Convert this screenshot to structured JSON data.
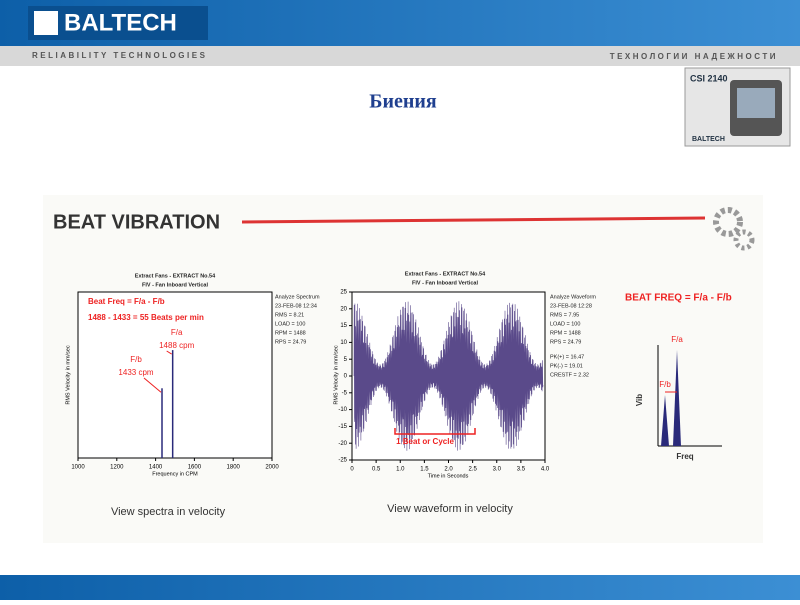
{
  "header": {
    "brand": "BALTECH",
    "tagline_left": "RELIABILITY  TECHNOLOGIES",
    "tagline_right": "ТЕХНОЛОГИИ НАДЕЖНОСТИ",
    "device": "CSI 2140",
    "device_brand": "BALTECH"
  },
  "title": "Биения",
  "slide": {
    "heading": "BEAT VIBRATION",
    "spectrum": {
      "header_lines": [
        "Extract Fans - EXTRACT No.54",
        "FIV - Fan Inboard Vertical"
      ],
      "info": [
        "Analyze Spectrum",
        "23-FEB-08 12:34",
        "RMS = 8.21",
        "LOAD = 100",
        "RPM = 1488",
        "RPS = 24.79"
      ],
      "formula": "Beat Freq = F/a - F/b",
      "calc": "1488 - 1433 = 55 Beats per min",
      "peaks": [
        {
          "name": "F/b",
          "freq": 1433,
          "freq_label": "1433 cpm",
          "amplitude": 4.2
        },
        {
          "name": "F/a",
          "freq": 1488,
          "freq_label": "1488 cpm",
          "amplitude": 6.5
        }
      ],
      "xlim": [
        1000,
        2000
      ],
      "xticks": [
        1000,
        1200,
        1400,
        1600,
        1800,
        2000
      ],
      "ylim": [
        0,
        10
      ],
      "xlabel": "Frequency in CPM",
      "ylabel": "RMS Velocity in mm/sec",
      "caption": "View spectra in velocity"
    },
    "waveform": {
      "header_lines": [
        "Extract Fans - EXTRACT No.54",
        "FIV - Fan Inboard Vertical"
      ],
      "info": [
        "Analyze Waveform",
        "23-FEB-08 12:28",
        "RMS = 7.95",
        "LOAD = 100",
        "RPM = 1488",
        "RPS = 24.79"
      ],
      "peaks_info": [
        "PK(+) = 16.47",
        "PK(-) = 19.01",
        "CRESTF = 2.32"
      ],
      "annotation": "1 Beat or Cycle",
      "xlim": [
        0,
        4
      ],
      "xticks": [
        0,
        0.5,
        {
          "value": 1,
          "label": "1.0"
        },
        1.5,
        {
          "value": 2,
          "label": "2.0"
        },
        2.5,
        {
          "value": 3,
          "label": "3.0"
        },
        3.5,
        {
          "value": 4,
          "label": "4.0"
        }
      ],
      "ylim": [
        -25,
        25
      ],
      "yticks": [
        -25,
        -20,
        -15,
        -10,
        -5,
        0,
        5,
        10,
        15,
        20,
        25
      ],
      "xlabel": "Time in Seconds",
      "ylabel": "RMS Velocity in mm/sec",
      "caption": "View waveform in velocity"
    },
    "schematic": {
      "formula": "BEAT FREQ = F/a - F/b",
      "peak_a": "F/a",
      "peak_b": "F/b",
      "ylabel": "Vib",
      "xlabel": "Freq"
    }
  }
}
